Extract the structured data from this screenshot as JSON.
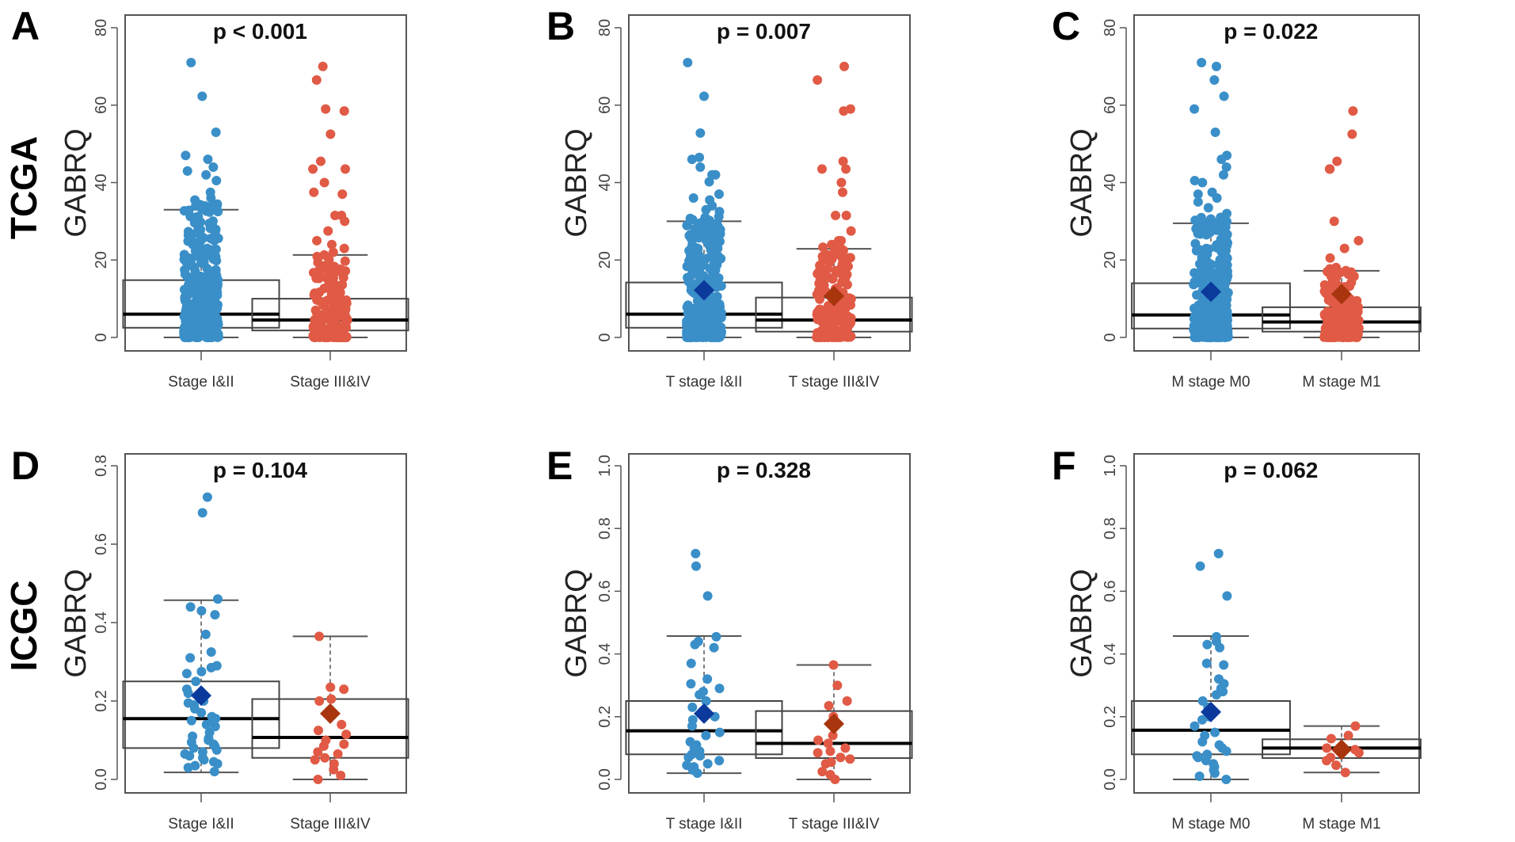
{
  "figure": {
    "row_labels": [
      "TCGA",
      "ICGC"
    ],
    "colors": {
      "group1_points": "#3a8fc8",
      "group2_points": "#e05a45",
      "group1_mean": "#0b3a9c",
      "group2_mean": "#a8350e",
      "frame": "#555555",
      "median": "#000000"
    }
  },
  "chart_data": [
    {
      "type": "box",
      "panel": "A",
      "cohort": "TCGA",
      "title": "p < 0.001",
      "ylabel": "GABRQ",
      "xlabel": "",
      "ylim": [
        0,
        80
      ],
      "yticks": [
        0,
        20,
        40,
        60,
        80
      ],
      "ytick_labels": [
        "0",
        "20",
        "40",
        "60",
        "80"
      ],
      "grid": false,
      "categories": [
        "Stage I&II",
        "Stage III&IV"
      ],
      "series": [
        {
          "name": "Stage I&II",
          "q1": 2.5,
          "median": 6,
          "q3": 14.8,
          "whisker_low": 0,
          "whisker_high": 33,
          "mean": null,
          "outliers": [
            71,
            62.3,
            53,
            47,
            46,
            44,
            43,
            42,
            40.5,
            37.5,
            36,
            35.5,
            34
          ]
        },
        {
          "name": "Stage III&IV",
          "q1": 1.8,
          "median": 4.5,
          "q3": 10,
          "whisker_low": 0,
          "whisker_high": 21.3,
          "mean": null,
          "outliers": [
            70,
            66.5,
            59,
            58.5,
            52.5,
            45.5,
            43.5,
            43.5,
            40,
            37.5,
            37,
            31.5,
            31.5,
            30,
            27.5,
            25,
            24,
            23,
            22
          ]
        }
      ]
    },
    {
      "type": "box",
      "panel": "B",
      "cohort": "TCGA",
      "title": "p = 0.007",
      "ylabel": "GABRQ",
      "xlabel": "",
      "ylim": [
        0,
        80
      ],
      "yticks": [
        0,
        20,
        40,
        60,
        80
      ],
      "ytick_labels": [
        "0",
        "20",
        "40",
        "60",
        "80"
      ],
      "grid": false,
      "categories": [
        "T stage I&II",
        "T stage III&IV"
      ],
      "series": [
        {
          "name": "T stage I&II",
          "q1": 2.5,
          "median": 6,
          "q3": 14.2,
          "whisker_low": 0,
          "whisker_high": 30,
          "mean": 12.2,
          "outliers": [
            71,
            62.3,
            52.8,
            46.5,
            46,
            44,
            42,
            42,
            40.2,
            37,
            36,
            35.5,
            34,
            33,
            32.5,
            31
          ]
        },
        {
          "name": "T stage III&IV",
          "q1": 1.5,
          "median": 4.5,
          "q3": 10.3,
          "whisker_low": 0,
          "whisker_high": 22.9,
          "mean": 10.7,
          "outliers": [
            70,
            66.5,
            59,
            58.5,
            45.5,
            43.5,
            43.5,
            40,
            37.5,
            31.5,
            31.5,
            27.5,
            25,
            25,
            24,
            23.5
          ]
        }
      ]
    },
    {
      "type": "box",
      "panel": "C",
      "cohort": "TCGA",
      "title": "p = 0.022",
      "ylabel": "GABRQ",
      "xlabel": "",
      "ylim": [
        0,
        80
      ],
      "yticks": [
        0,
        20,
        40,
        60,
        80
      ],
      "ytick_labels": [
        "0",
        "20",
        "40",
        "60",
        "80"
      ],
      "grid": false,
      "categories": [
        "M stage M0",
        "M stage M1"
      ],
      "series": [
        {
          "name": "M stage M0",
          "q1": 2.3,
          "median": 5.8,
          "q3": 14,
          "whisker_low": 0,
          "whisker_high": 29.5,
          "mean": 11.8,
          "outliers": [
            71,
            70,
            66.5,
            62.3,
            59,
            53,
            47,
            46,
            44,
            42,
            40.5,
            40,
            37.5,
            37,
            36,
            35,
            33.5,
            32,
            31
          ]
        },
        {
          "name": "M stage M1",
          "q1": 1.5,
          "median": 4,
          "q3": 7.8,
          "whisker_low": 0,
          "whisker_high": 17.2,
          "mean": 11.2,
          "outliers": [
            58.5,
            52.5,
            45.5,
            43.5,
            43.5,
            30,
            25,
            23,
            20.5
          ]
        }
      ]
    },
    {
      "type": "box",
      "panel": "D",
      "cohort": "ICGC",
      "title": "p = 0.104",
      "ylabel": "GABRQ",
      "xlabel": "",
      "ylim": [
        0,
        0.8
      ],
      "yticks": [
        0,
        0.2,
        0.4,
        0.6,
        0.8
      ],
      "ytick_labels": [
        "0.0",
        "0.2",
        "0.4",
        "0.6",
        "0.8"
      ],
      "grid": false,
      "categories": [
        "Stage I&II",
        "Stage III&IV"
      ],
      "series": [
        {
          "name": "Stage I&II",
          "q1": 0.08,
          "median": 0.155,
          "q3": 0.25,
          "whisker_low": 0.018,
          "whisker_high": 0.457,
          "mean": 0.214,
          "points": [
            0.72,
            0.68,
            0.46,
            0.44,
            0.43,
            0.42,
            0.37,
            0.325,
            0.31,
            0.29,
            0.285,
            0.275,
            0.27,
            0.25,
            0.23,
            0.22,
            0.2,
            0.195,
            0.19,
            0.18,
            0.17,
            0.16,
            0.155,
            0.15,
            0.145,
            0.14,
            0.135,
            0.12,
            0.11,
            0.105,
            0.1,
            0.095,
            0.09,
            0.085,
            0.08,
            0.075,
            0.07,
            0.065,
            0.06,
            0.055,
            0.05,
            0.045,
            0.04,
            0.035,
            0.03,
            0.02
          ]
        },
        {
          "name": "Stage III&IV",
          "q1": 0.055,
          "median": 0.107,
          "q3": 0.205,
          "whisker_low": 0,
          "whisker_high": 0.365,
          "mean": 0.168,
          "points": [
            0.365,
            0.235,
            0.23,
            0.205,
            0.2,
            0.14,
            0.125,
            0.115,
            0.1,
            0.09,
            0.085,
            0.07,
            0.065,
            0.055,
            0.05,
            0.04,
            0.025,
            0.01,
            0.0
          ]
        }
      ]
    },
    {
      "type": "box",
      "panel": "E",
      "cohort": "ICGC",
      "title": "p = 0.328",
      "ylabel": "GABRQ",
      "xlabel": "",
      "ylim": [
        0,
        1.0
      ],
      "yticks": [
        0,
        0.2,
        0.4,
        0.6,
        0.8,
        1.0
      ],
      "ytick_labels": [
        "0.0",
        "0.2",
        "0.4",
        "0.6",
        "0.8",
        "1.0"
      ],
      "grid": false,
      "categories": [
        "T stage I&II",
        "T stage III&IV"
      ],
      "series": [
        {
          "name": "T stage I&II",
          "q1": 0.08,
          "median": 0.155,
          "q3": 0.25,
          "whisker_low": 0.02,
          "whisker_high": 0.457,
          "mean": 0.21,
          "points": [
            0.72,
            0.68,
            0.585,
            0.455,
            0.44,
            0.43,
            0.42,
            0.37,
            0.32,
            0.305,
            0.29,
            0.28,
            0.27,
            0.25,
            0.23,
            0.22,
            0.2,
            0.19,
            0.17,
            0.15,
            0.14,
            0.12,
            0.11,
            0.1,
            0.09,
            0.08,
            0.075,
            0.07,
            0.06,
            0.05,
            0.045,
            0.04,
            0.03,
            0.02
          ]
        },
        {
          "name": "T stage III&IV",
          "q1": 0.068,
          "median": 0.115,
          "q3": 0.218,
          "whisker_low": 0,
          "whisker_high": 0.365,
          "mean": 0.177,
          "points": [
            0.365,
            0.3,
            0.25,
            0.235,
            0.2,
            0.14,
            0.125,
            0.115,
            0.1,
            0.09,
            0.085,
            0.07,
            0.065,
            0.055,
            0.05,
            0.025,
            0.015,
            0.0
          ]
        }
      ]
    },
    {
      "type": "box",
      "panel": "F",
      "cohort": "ICGC",
      "title": "p = 0.062",
      "ylabel": "GABRQ",
      "xlabel": "",
      "ylim": [
        0,
        1.0
      ],
      "yticks": [
        0,
        0.2,
        0.4,
        0.6,
        0.8,
        1.0
      ],
      "ytick_labels": [
        "0.0",
        "0.2",
        "0.4",
        "0.6",
        "0.8",
        "1.0"
      ],
      "grid": false,
      "categories": [
        "M stage M0",
        "M stage M1"
      ],
      "series": [
        {
          "name": "M stage M0",
          "q1": 0.08,
          "median": 0.157,
          "q3": 0.25,
          "whisker_low": 0,
          "whisker_high": 0.457,
          "mean": 0.215,
          "points": [
            0.72,
            0.68,
            0.585,
            0.455,
            0.44,
            0.43,
            0.42,
            0.37,
            0.365,
            0.32,
            0.305,
            0.29,
            0.28,
            0.27,
            0.25,
            0.23,
            0.22,
            0.2,
            0.19,
            0.17,
            0.15,
            0.14,
            0.12,
            0.11,
            0.1,
            0.09,
            0.08,
            0.075,
            0.07,
            0.06,
            0.05,
            0.04,
            0.03,
            0.02,
            0.01,
            0.0
          ]
        },
        {
          "name": "M stage M1",
          "q1": 0.068,
          "median": 0.1,
          "q3": 0.128,
          "whisker_low": 0.022,
          "whisker_high": 0.17,
          "mean": 0.095,
          "points": [
            0.17,
            0.14,
            0.13,
            0.1,
            0.095,
            0.085,
            0.07,
            0.06,
            0.045,
            0.022
          ]
        }
      ]
    }
  ]
}
